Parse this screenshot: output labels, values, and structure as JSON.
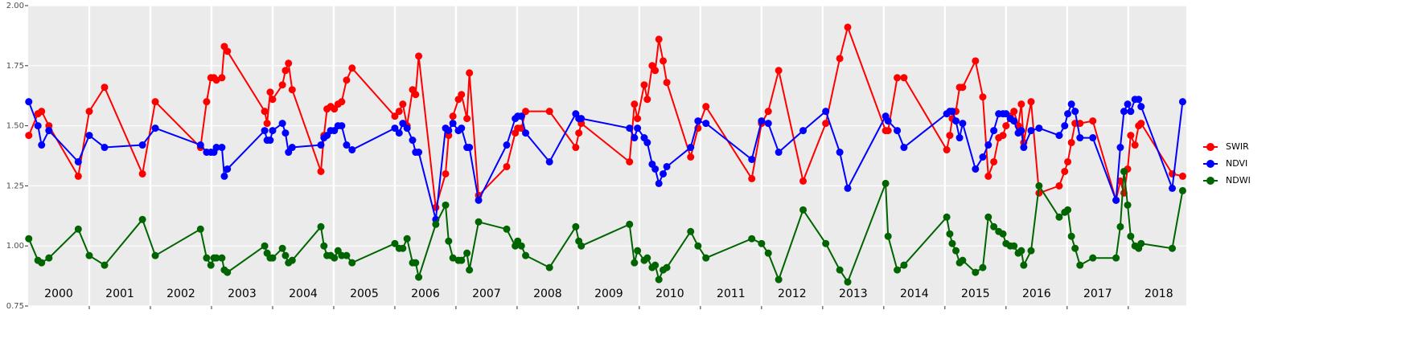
{
  "chart_data": {
    "type": "line",
    "x": [
      2000.01,
      2000.16,
      2000.22,
      2000.34,
      2000.82,
      2001.0,
      2001.25,
      2001.87,
      2002.08,
      2002.82,
      2002.92,
      2002.99,
      2003.04,
      2003.08,
      2003.17,
      2003.21,
      2003.26,
      2003.87,
      2003.91,
      2003.96,
      2004.0,
      2004.16,
      2004.21,
      2004.26,
      2004.32,
      2004.79,
      2004.84,
      2004.89,
      2004.95,
      2005.01,
      2005.07,
      2005.13,
      2005.21,
      2005.3,
      2006.0,
      2006.07,
      2006.13,
      2006.2,
      2006.29,
      2006.34,
      2006.39,
      2006.67,
      2006.83,
      2006.88,
      2006.95,
      2007.04,
      2007.09,
      2007.18,
      2007.22,
      2007.37,
      2007.83,
      2007.97,
      2008.01,
      2008.07,
      2008.14,
      2008.53,
      2008.96,
      2009.01,
      2009.05,
      2009.84,
      2009.92,
      2009.97,
      2010.08,
      2010.13,
      2010.21,
      2010.26,
      2010.32,
      2010.39,
      2010.45,
      2010.84,
      2010.96,
      2011.09,
      2011.84,
      2012.0,
      2012.11,
      2012.28,
      2012.68,
      2013.05,
      2013.28,
      2013.41,
      2014.03,
      2014.07,
      2014.22,
      2014.33,
      2015.03,
      2015.08,
      2015.12,
      2015.18,
      2015.24,
      2015.29,
      2015.5,
      2015.62,
      2015.71,
      2015.8,
      2015.88,
      2015.95,
      2016.0,
      2016.07,
      2016.13,
      2016.2,
      2016.25,
      2016.29,
      2016.41,
      2016.54,
      2016.87,
      2016.96,
      2017.01,
      2017.07,
      2017.13,
      2017.21,
      2017.42,
      2017.8,
      2017.87,
      2017.93,
      2017.99,
      2018.04,
      2018.11,
      2018.17,
      2018.21,
      2018.72,
      2018.89
    ],
    "series": [
      {
        "name": "SWIR",
        "color": "#ff0000",
        "values": [
          1.46,
          1.55,
          1.56,
          1.5,
          1.29,
          1.56,
          1.66,
          1.3,
          1.6,
          1.41,
          1.6,
          1.7,
          1.7,
          1.69,
          1.7,
          1.83,
          1.81,
          1.56,
          1.51,
          1.64,
          1.61,
          1.67,
          1.73,
          1.76,
          1.65,
          1.31,
          1.46,
          1.57,
          1.58,
          1.57,
          1.59,
          1.6,
          1.69,
          1.74,
          1.54,
          1.56,
          1.59,
          1.5,
          1.65,
          1.63,
          1.79,
          1.16,
          1.3,
          1.46,
          1.54,
          1.61,
          1.63,
          1.53,
          1.72,
          1.21,
          1.33,
          1.47,
          1.49,
          1.49,
          1.56,
          1.56,
          1.41,
          1.47,
          1.51,
          1.35,
          1.59,
          1.53,
          1.67,
          1.61,
          1.75,
          1.73,
          1.86,
          1.77,
          1.68,
          1.37,
          1.49,
          1.58,
          1.28,
          1.51,
          1.56,
          1.73,
          1.27,
          1.51,
          1.78,
          1.91,
          1.48,
          1.48,
          1.7,
          1.7,
          1.4,
          1.46,
          1.53,
          1.56,
          1.66,
          1.66,
          1.77,
          1.62,
          1.29,
          1.35,
          1.45,
          1.46,
          1.5,
          1.54,
          1.56,
          1.5,
          1.59,
          1.43,
          1.6,
          1.22,
          1.25,
          1.31,
          1.35,
          1.43,
          1.51,
          1.51,
          1.52,
          1.19,
          1.27,
          1.22,
          1.32,
          1.46,
          1.42,
          1.5,
          1.51,
          1.3,
          1.29
        ]
      },
      {
        "name": "NDVI",
        "color": "#0000ff",
        "values": [
          1.6,
          1.5,
          1.42,
          1.48,
          1.35,
          1.46,
          1.41,
          1.42,
          1.49,
          1.42,
          1.39,
          1.39,
          1.39,
          1.41,
          1.41,
          1.29,
          1.32,
          1.48,
          1.44,
          1.44,
          1.48,
          1.51,
          1.47,
          1.39,
          1.41,
          1.42,
          1.45,
          1.46,
          1.48,
          1.48,
          1.5,
          1.5,
          1.42,
          1.4,
          1.49,
          1.47,
          1.51,
          1.49,
          1.44,
          1.39,
          1.39,
          1.11,
          1.49,
          1.48,
          1.51,
          1.48,
          1.49,
          1.41,
          1.41,
          1.19,
          1.42,
          1.53,
          1.54,
          1.54,
          1.47,
          1.35,
          1.55,
          1.53,
          1.53,
          1.49,
          1.45,
          1.49,
          1.45,
          1.43,
          1.34,
          1.32,
          1.26,
          1.3,
          1.33,
          1.41,
          1.52,
          1.51,
          1.36,
          1.52,
          1.51,
          1.39,
          1.48,
          1.56,
          1.39,
          1.24,
          1.54,
          1.52,
          1.48,
          1.41,
          1.55,
          1.56,
          1.56,
          1.52,
          1.45,
          1.51,
          1.32,
          1.37,
          1.42,
          1.48,
          1.55,
          1.55,
          1.55,
          1.53,
          1.52,
          1.47,
          1.48,
          1.41,
          1.48,
          1.49,
          1.46,
          1.5,
          1.55,
          1.59,
          1.56,
          1.45,
          1.45,
          1.19,
          1.41,
          1.56,
          1.59,
          1.56,
          1.61,
          1.61,
          1.58,
          1.24,
          1.6
        ]
      },
      {
        "name": "NDWI",
        "color": "#006400",
        "values": [
          1.03,
          0.94,
          0.93,
          0.95,
          1.07,
          0.96,
          0.92,
          1.11,
          0.96,
          1.07,
          0.95,
          0.92,
          0.95,
          0.95,
          0.95,
          0.9,
          0.89,
          1.0,
          0.97,
          0.95,
          0.95,
          0.99,
          0.96,
          0.93,
          0.94,
          1.08,
          1.0,
          0.96,
          0.96,
          0.95,
          0.98,
          0.96,
          0.96,
          0.93,
          1.01,
          0.99,
          0.99,
          1.03,
          0.93,
          0.93,
          0.87,
          1.09,
          1.17,
          1.02,
          0.95,
          0.94,
          0.94,
          0.97,
          0.9,
          1.1,
          1.07,
          1.0,
          1.02,
          1.0,
          0.96,
          0.91,
          1.08,
          1.02,
          1.0,
          1.09,
          0.93,
          0.98,
          0.94,
          0.95,
          0.91,
          0.92,
          0.86,
          0.9,
          0.91,
          1.06,
          1.0,
          0.95,
          1.03,
          1.01,
          0.97,
          0.86,
          1.15,
          1.01,
          0.9,
          0.85,
          1.26,
          1.04,
          0.9,
          0.92,
          1.12,
          1.05,
          1.01,
          0.98,
          0.93,
          0.94,
          0.89,
          0.91,
          1.12,
          1.08,
          1.06,
          1.05,
          1.01,
          1.0,
          1.0,
          0.97,
          0.98,
          0.92,
          0.98,
          1.25,
          1.12,
          1.14,
          1.15,
          1.04,
          0.99,
          0.92,
          0.95,
          0.95,
          1.08,
          1.31,
          1.17,
          1.04,
          1.0,
          0.99,
          1.01,
          0.99,
          1.23
        ]
      }
    ],
    "xlim": [
      2000,
      2018.95
    ],
    "xticks": [
      2001,
      2002,
      2003,
      2004,
      2005,
      2006,
      2007,
      2008,
      2009,
      2010,
      2011,
      2012,
      2013,
      2014,
      2015,
      2016,
      2017,
      2018
    ],
    "ylim": [
      0.75,
      2
    ],
    "yticks": [
      0.75,
      {
        "value": 1,
        "label": "1.00"
      },
      1.25,
      {
        "value": 1.5,
        "label": "1.50"
      },
      1.75,
      {
        "value": 2,
        "label": "2.00"
      }
    ],
    "year_labels": [
      "2000",
      "2001",
      "2002",
      "2003",
      "2004",
      "2005",
      "2006",
      "2007",
      "2008",
      "2009",
      "2010",
      "2011",
      "2012",
      "2013",
      "2014",
      "2015",
      "2016",
      "2017",
      "2018"
    ],
    "grid": true,
    "legend": "right"
  }
}
